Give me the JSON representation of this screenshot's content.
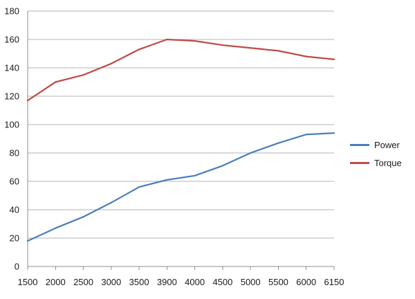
{
  "chart_data": {
    "type": "line",
    "title": "",
    "xlabel": "",
    "ylabel": "",
    "categories": [
      "1500",
      "2000",
      "2500",
      "3000",
      "3500",
      "3900",
      "4000",
      "4500",
      "5000",
      "5500",
      "6000",
      "6150"
    ],
    "ylim": [
      0,
      180
    ],
    "yticks": [
      0,
      20,
      40,
      60,
      80,
      100,
      120,
      140,
      160,
      180
    ],
    "grid": true,
    "legend_position": "right",
    "series": [
      {
        "name": "Power",
        "color": "#4a7ebb",
        "values": [
          18,
          27,
          35,
          45,
          56,
          61,
          64,
          71,
          80,
          87,
          93,
          94
        ]
      },
      {
        "name": "Torque",
        "color": "#be4b48",
        "values": [
          117,
          130,
          135,
          143,
          153,
          160,
          159,
          156,
          154,
          152,
          148,
          146
        ]
      }
    ]
  }
}
